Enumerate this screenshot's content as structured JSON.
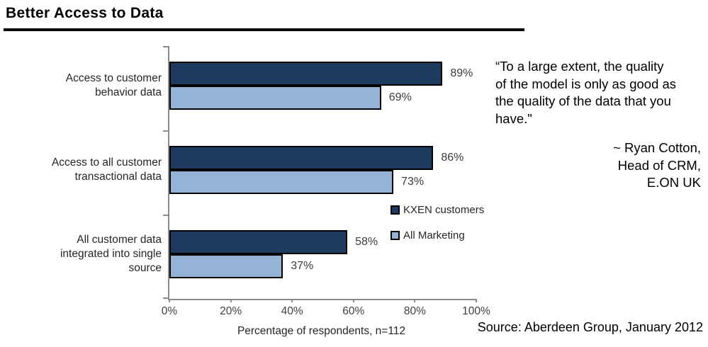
{
  "title": "Better Access to Data",
  "chart_data": {
    "type": "bar",
    "orientation": "horizontal",
    "title": "Better Access to Data",
    "categories": [
      "Access to customer\nbehavior data",
      "Access to all customer\ntransactional data",
      "All customer data\nintegrated into single\nsource"
    ],
    "series": [
      {
        "name": "KXEN customers",
        "color": "#1E3A5F",
        "values": [
          89,
          86,
          58
        ]
      },
      {
        "name": "All Marketing",
        "color": "#95B3D7",
        "values": [
          69,
          73,
          37
        ]
      }
    ],
    "xlabel": "Percentage of respondents, n=112",
    "xlim": [
      0,
      100
    ],
    "xticks": [
      {
        "value": 0,
        "label": "0%"
      },
      {
        "value": 20,
        "label": "20%"
      },
      {
        "value": 40,
        "label": "40%"
      },
      {
        "value": 60,
        "label": "60%"
      },
      {
        "value": 80,
        "label": "80%"
      },
      {
        "value": 100,
        "label": "100%"
      }
    ],
    "grid": false,
    "legend_position": "inside-right",
    "value_label_suffix": "%",
    "axis_color": "#8C8C8C",
    "bar_border_color": "#000000"
  },
  "quote": {
    "text": "“To a large extent, the quality\nof the model is only as good as\nthe quality of the data that you\nhave.\"",
    "attribution": "~ Ryan Cotton,\nHead of CRM,\nE.ON UK"
  },
  "source": "Source: Aberdeen Group, January 2012"
}
